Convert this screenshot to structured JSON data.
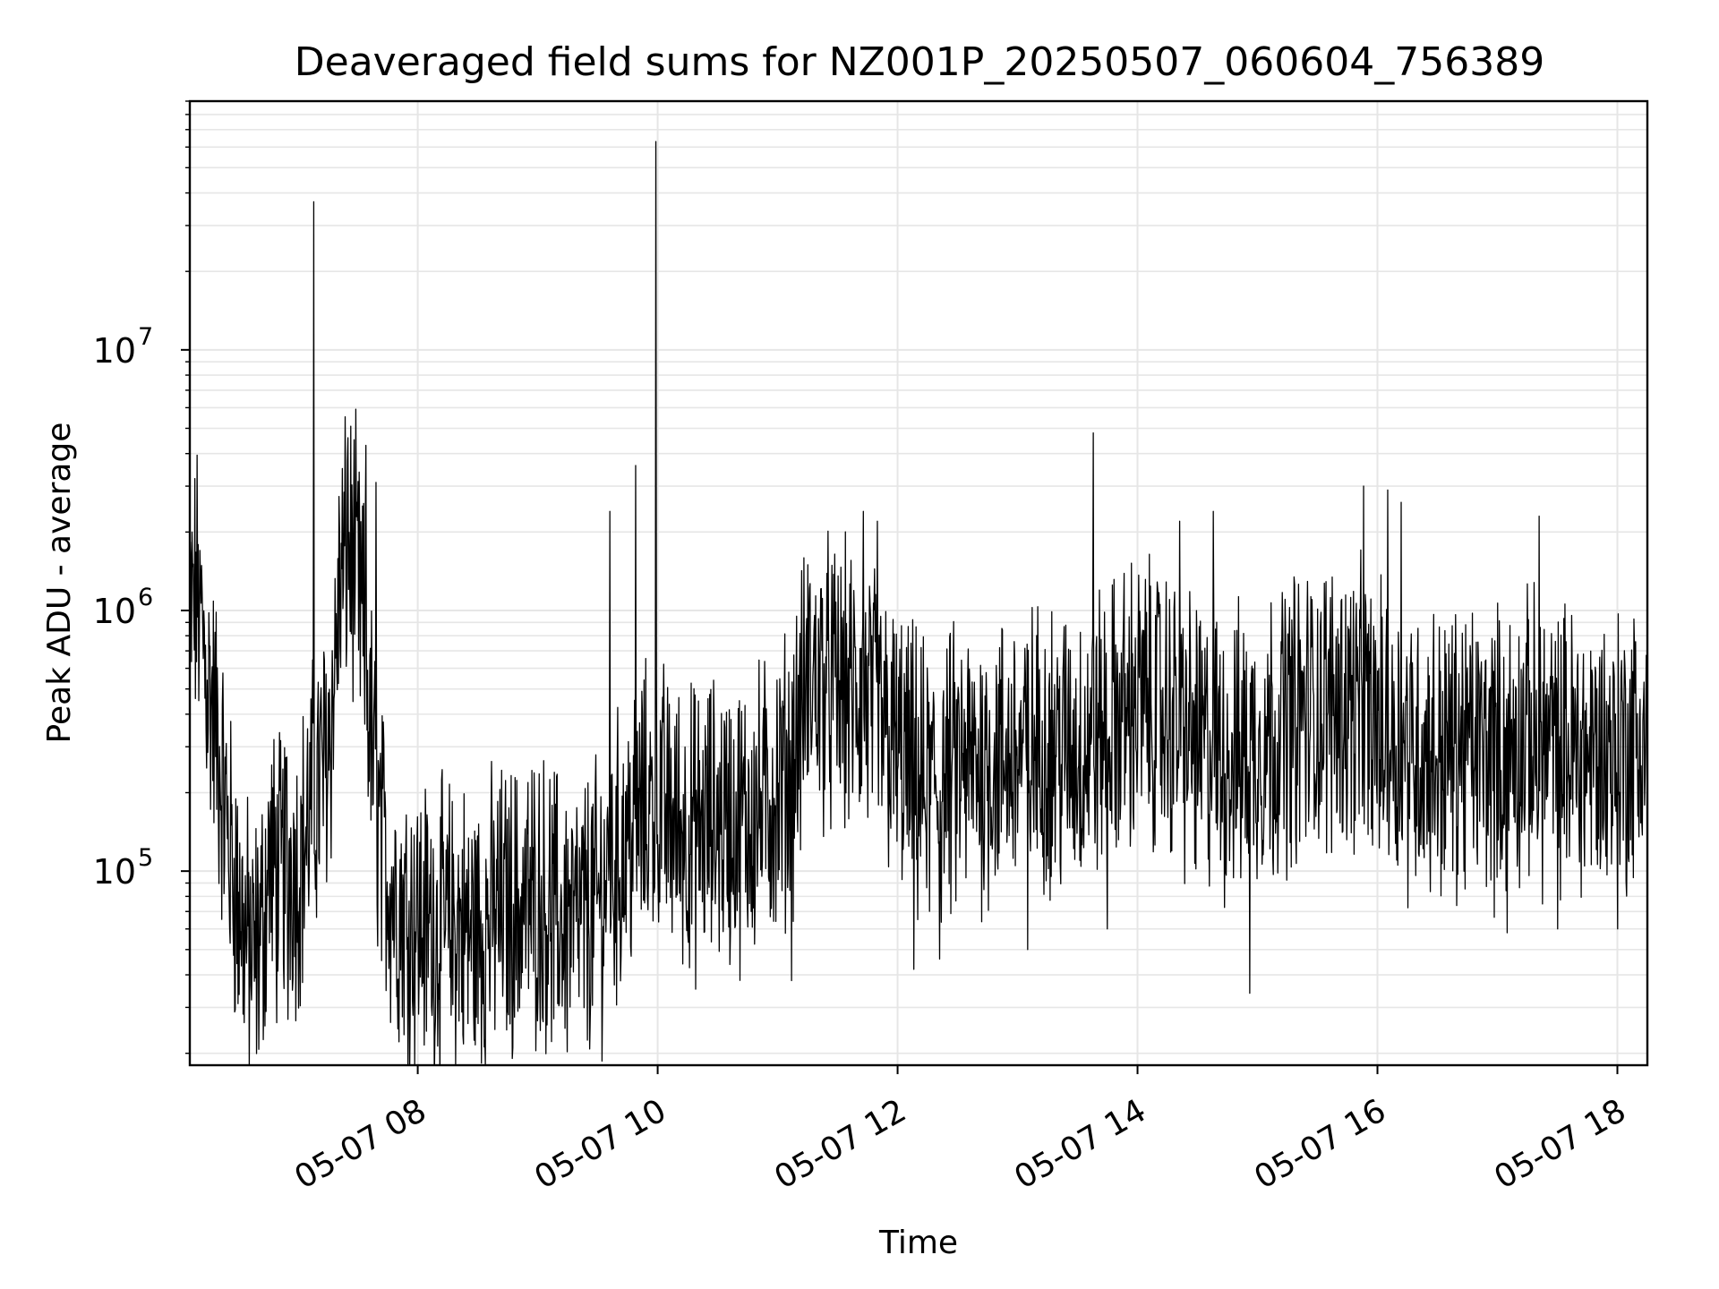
{
  "chart_data": {
    "type": "line",
    "title": "Deaveraged field sums for NZ001P_20250507_060604_756389",
    "xlabel": "Time",
    "ylabel": "Peak ADU - average",
    "yscale": "log",
    "ylim": [
      18000,
      90000000
    ],
    "xlim": [
      "2025-05-07 06:06",
      "2025-05-07 18:15"
    ],
    "x_ticks": [
      "05-07 08",
      "05-07 10",
      "05-07 12",
      "05-07 14",
      "05-07 16",
      "05-07 18"
    ],
    "x_tick_times": [
      "2025-05-07 08:00",
      "2025-05-07 10:00",
      "2025-05-07 12:00",
      "2025-05-07 14:00",
      "2025-05-07 16:00",
      "2025-05-07 18:00"
    ],
    "y_ticks": [
      {
        "base": "10",
        "exp": "5",
        "value": 100000
      },
      {
        "base": "10",
        "exp": "6",
        "value": 1000000
      },
      {
        "base": "10",
        "exp": "7",
        "value": 10000000
      }
    ],
    "grid": true,
    "line_color": "#000000",
    "series": [
      {
        "values": [
          [
            "2025-05-07 06:06",
            900000
          ],
          [
            "2025-05-07 06:10",
            1200000
          ],
          [
            "2025-05-07 06:14",
            600000
          ],
          [
            "2025-05-07 06:18",
            400000
          ],
          [
            "2025-05-07 06:22",
            220000
          ],
          [
            "2025-05-07 06:26",
            120000
          ],
          [
            "2025-05-07 06:30",
            80000
          ],
          [
            "2025-05-07 06:34",
            55000
          ],
          [
            "2025-05-07 06:38",
            45000
          ],
          [
            "2025-05-07 06:42",
            60000
          ],
          [
            "2025-05-07 06:46",
            110000
          ],
          [
            "2025-05-07 06:50",
            90000
          ],
          [
            "2025-05-07 06:55",
            120000
          ],
          [
            "2025-05-07 07:00",
            100000
          ],
          [
            "2025-05-07 07:05",
            150000
          ],
          [
            "2025-05-07 07:09",
            200000
          ],
          [
            "2025-05-07 07:13",
            250000
          ],
          [
            "2025-05-07 07:17",
            400000
          ],
          [
            "2025-05-07 07:21",
            1200000
          ],
          [
            "2025-05-07 07:25",
            1800000
          ],
          [
            "2025-05-07 07:29",
            1400000
          ],
          [
            "2025-05-07 07:33",
            800000
          ],
          [
            "2025-05-07 07:37",
            300000
          ],
          [
            "2025-05-07 07:42",
            120000
          ],
          [
            "2025-05-07 07:50",
            75000
          ],
          [
            "2025-05-07 08:00",
            65000
          ],
          [
            "2025-05-07 08:10",
            60000
          ],
          [
            "2025-05-07 08:20",
            62000
          ],
          [
            "2025-05-07 08:30",
            58000
          ],
          [
            "2025-05-07 08:40",
            70000
          ],
          [
            "2025-05-07 08:50",
            72000
          ],
          [
            "2025-05-07 09:00",
            80000
          ],
          [
            "2025-05-07 09:10",
            68000
          ],
          [
            "2025-05-07 09:20",
            62000
          ],
          [
            "2025-05-07 09:30",
            75000
          ],
          [
            "2025-05-07 09:40",
            110000
          ],
          [
            "2025-05-07 09:50",
            160000
          ],
          [
            "2025-05-07 10:00",
            180000
          ],
          [
            "2025-05-07 10:10",
            150000
          ],
          [
            "2025-05-07 10:20",
            140000
          ],
          [
            "2025-05-07 10:30",
            160000
          ],
          [
            "2025-05-07 10:40",
            150000
          ],
          [
            "2025-05-07 10:50",
            170000
          ],
          [
            "2025-05-07 11:00",
            200000
          ],
          [
            "2025-05-07 11:07",
            250000
          ],
          [
            "2025-05-07 11:15",
            550000
          ],
          [
            "2025-05-07 11:30",
            500000
          ],
          [
            "2025-05-07 11:45",
            450000
          ],
          [
            "2025-05-07 12:00",
            280000
          ],
          [
            "2025-05-07 12:15",
            200000
          ],
          [
            "2025-05-07 12:30",
            240000
          ],
          [
            "2025-05-07 12:45",
            260000
          ],
          [
            "2025-05-07 13:00",
            280000
          ],
          [
            "2025-05-07 13:15",
            300000
          ],
          [
            "2025-05-07 13:30",
            290000
          ],
          [
            "2025-05-07 13:45",
            350000
          ],
          [
            "2025-05-07 14:00",
            450000
          ],
          [
            "2025-05-07 14:15",
            400000
          ],
          [
            "2025-05-07 14:30",
            300000
          ],
          [
            "2025-05-07 14:45",
            270000
          ],
          [
            "2025-05-07 15:00",
            300000
          ],
          [
            "2025-05-07 15:15",
            380000
          ],
          [
            "2025-05-07 15:30",
            420000
          ],
          [
            "2025-05-07 15:45",
            450000
          ],
          [
            "2025-05-07 16:00",
            350000
          ],
          [
            "2025-05-07 16:15",
            300000
          ],
          [
            "2025-05-07 16:30",
            280000
          ],
          [
            "2025-05-07 16:45",
            300000
          ],
          [
            "2025-05-07 17:00",
            280000
          ],
          [
            "2025-05-07 17:15",
            320000
          ],
          [
            "2025-05-07 17:30",
            300000
          ],
          [
            "2025-05-07 17:45",
            280000
          ],
          [
            "2025-05-07 18:00",
            290000
          ],
          [
            "2025-05-07 18:15",
            320000
          ]
        ],
        "peaks": [
          [
            "2025-05-07 07:08",
            37000000
          ],
          [
            "2025-05-07 09:59",
            63000000
          ],
          [
            "2025-05-07 13:38",
            4800000
          ],
          [
            "2025-05-07 09:49",
            3600000
          ],
          [
            "2025-05-07 07:25",
            4600000
          ],
          [
            "2025-05-07 07:34",
            4300000
          ],
          [
            "2025-05-07 07:39",
            3100000
          ],
          [
            "2025-05-07 09:36",
            2400000
          ],
          [
            "2025-05-07 11:43",
            2400000
          ],
          [
            "2025-05-07 11:50",
            2200000
          ],
          [
            "2025-05-07 14:38",
            2400000
          ],
          [
            "2025-05-07 15:53",
            3000000
          ],
          [
            "2025-05-07 16:05",
            2900000
          ],
          [
            "2025-05-07 17:21",
            2300000
          ],
          [
            "2025-05-07 14:21",
            2200000
          ],
          [
            "2025-05-07 16:12",
            2600000
          ],
          [
            "2025-05-07 06:11",
            1700000
          ]
        ],
        "troughs": [
          [
            "2025-05-07 06:30",
            31000
          ],
          [
            "2025-05-07 06:55",
            27000
          ],
          [
            "2025-05-07 08:25",
            26000
          ],
          [
            "2025-05-07 08:50",
            29000
          ],
          [
            "2025-05-07 09:10",
            31000
          ],
          [
            "2025-05-07 11:07",
            38000
          ],
          [
            "2025-05-07 12:08",
            42000
          ],
          [
            "2025-05-07 12:21",
            46000
          ],
          [
            "2025-05-07 14:56",
            34000
          ],
          [
            "2025-05-07 13:05",
            50000
          ],
          [
            "2025-05-07 13:45",
            60000
          ],
          [
            "2025-05-07 17:05",
            58000
          ],
          [
            "2025-05-07 17:30",
            60000
          ],
          [
            "2025-05-07 18:00",
            60000
          ]
        ]
      }
    ]
  }
}
